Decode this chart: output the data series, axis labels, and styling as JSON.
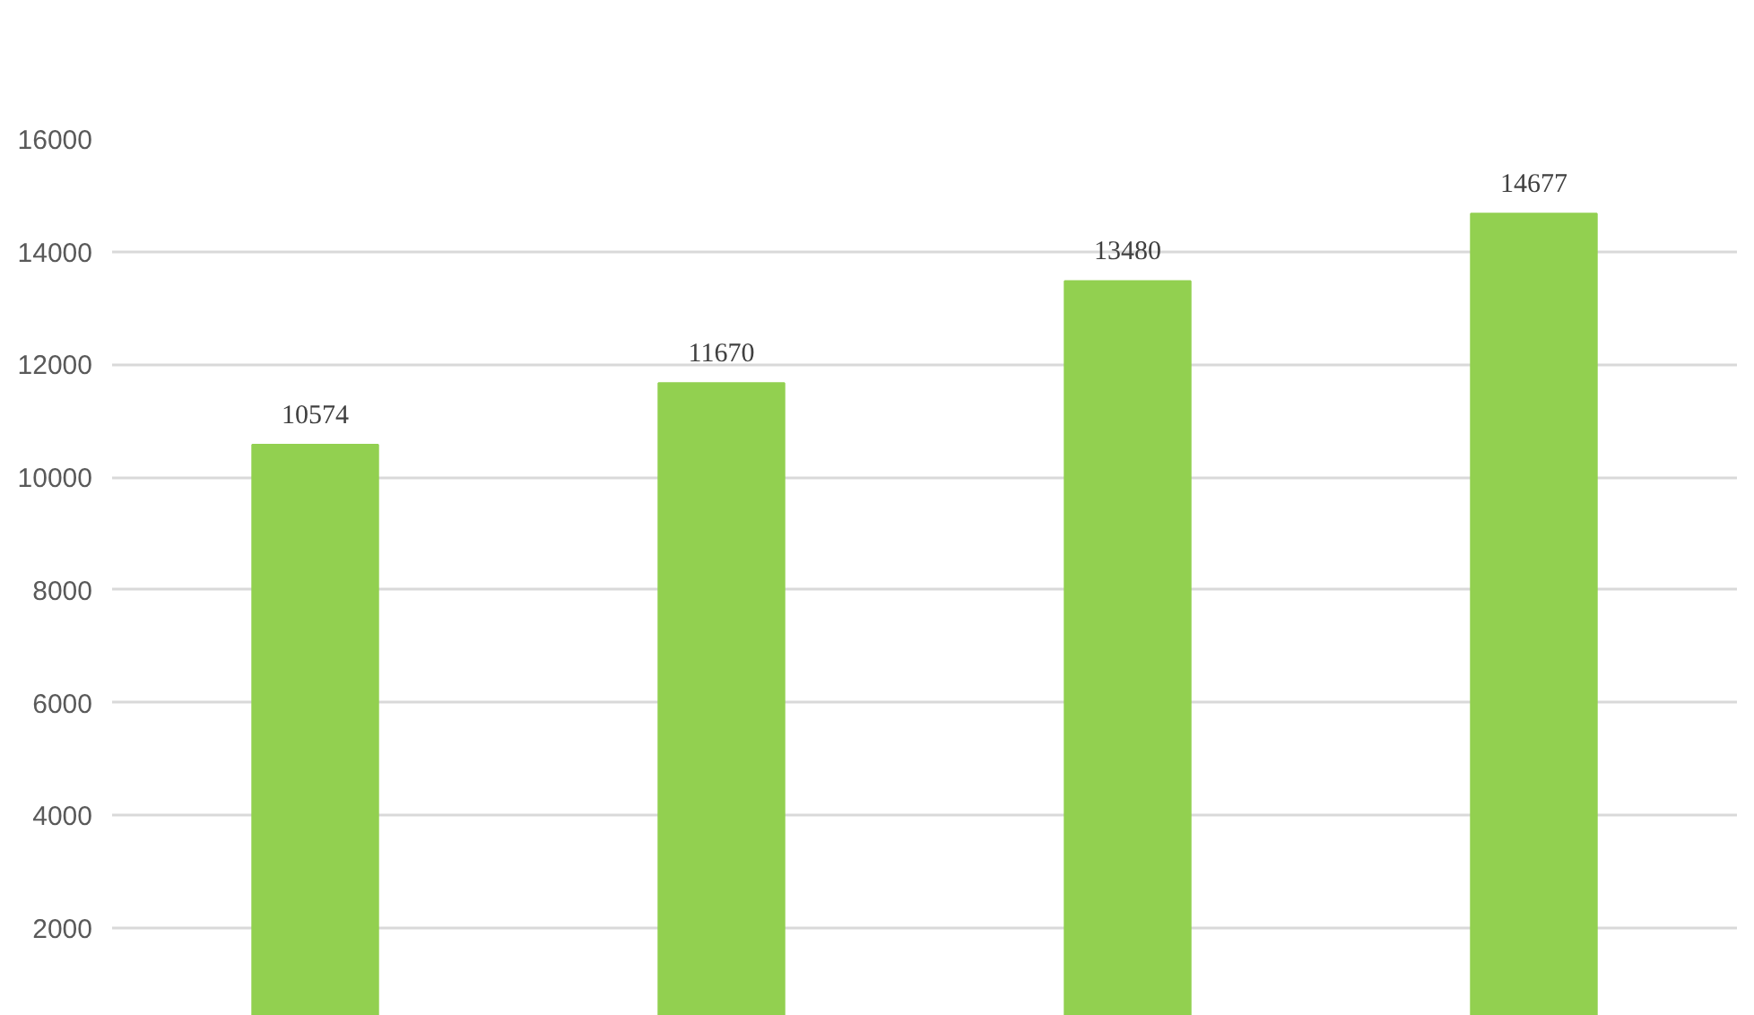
{
  "chart_data": {
    "type": "bar",
    "categories": [
      null,
      null,
      null,
      null
    ],
    "values": [
      10574,
      11670,
      13480,
      14677
    ],
    "color": "#92d050",
    "ylim": [
      440,
      16000
    ],
    "yticks": [
      2000,
      4000,
      6000,
      8000,
      10000,
      12000,
      14000,
      16000
    ],
    "grid": "y",
    "data_labels": true,
    "tick_labels": "y"
  }
}
